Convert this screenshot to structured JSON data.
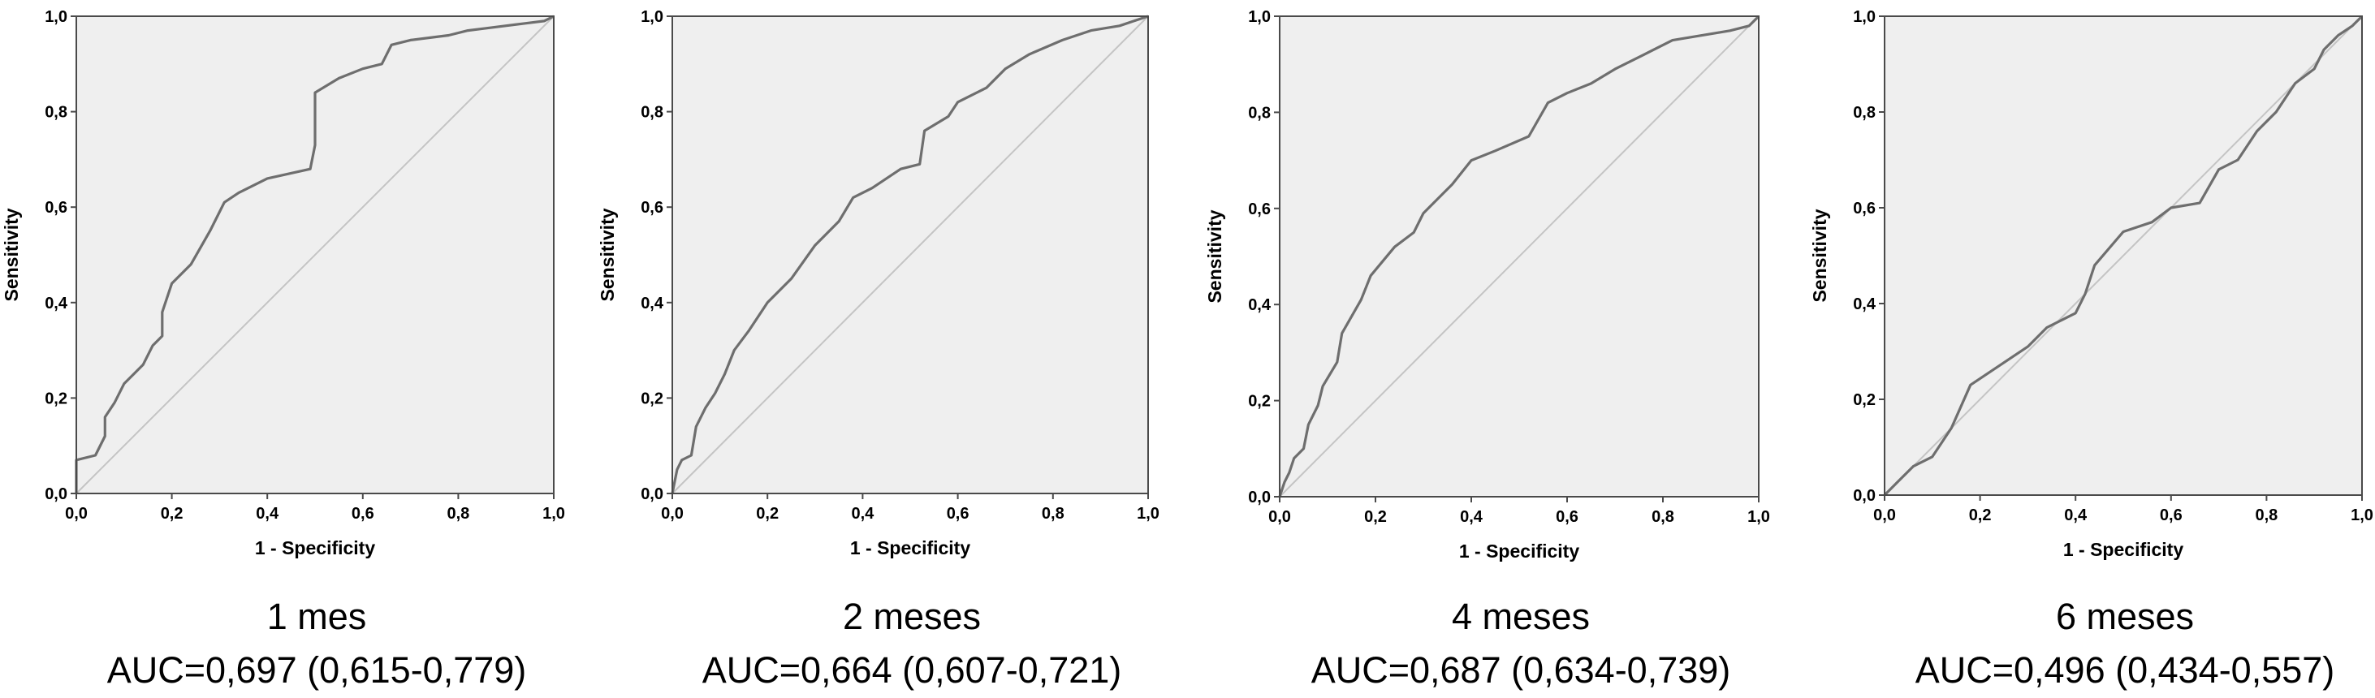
{
  "chart_data": [
    {
      "type": "line",
      "xlabel": "1 - Specificity",
      "ylabel": "Sensitivity",
      "xlim": [
        0,
        1
      ],
      "ylim": [
        0,
        1
      ],
      "xticks": [
        "0,0",
        "0,2",
        "0,4",
        "0,6",
        "0,8",
        "1,0"
      ],
      "yticks": [
        "0,0",
        "0,2",
        "0,4",
        "0,6",
        "0,8",
        "1,0"
      ],
      "caption": "1 mes",
      "auc": "AUC=0,697 (0,615-0,779)",
      "plot_background": "#efefef",
      "curve_color": "#6e6e6e",
      "reference_color": "#c4c4c4",
      "roc_points": [
        [
          0,
          0
        ],
        [
          0,
          0.07
        ],
        [
          0.04,
          0.08
        ],
        [
          0.06,
          0.12
        ],
        [
          0.06,
          0.16
        ],
        [
          0.08,
          0.19
        ],
        [
          0.1,
          0.23
        ],
        [
          0.12,
          0.25
        ],
        [
          0.14,
          0.27
        ],
        [
          0.16,
          0.31
        ],
        [
          0.18,
          0.33
        ],
        [
          0.18,
          0.38
        ],
        [
          0.2,
          0.44
        ],
        [
          0.24,
          0.48
        ],
        [
          0.28,
          0.55
        ],
        [
          0.31,
          0.61
        ],
        [
          0.34,
          0.63
        ],
        [
          0.4,
          0.66
        ],
        [
          0.49,
          0.68
        ],
        [
          0.5,
          0.73
        ],
        [
          0.5,
          0.84
        ],
        [
          0.55,
          0.87
        ],
        [
          0.6,
          0.89
        ],
        [
          0.64,
          0.9
        ],
        [
          0.66,
          0.94
        ],
        [
          0.7,
          0.95
        ],
        [
          0.78,
          0.96
        ],
        [
          0.82,
          0.97
        ],
        [
          0.86,
          0.975
        ],
        [
          0.94,
          0.985
        ],
        [
          0.98,
          0.99
        ],
        [
          1,
          1
        ]
      ]
    },
    {
      "type": "line",
      "xlabel": "1 - Specificity",
      "ylabel": "Sensitivity",
      "xlim": [
        0,
        1
      ],
      "ylim": [
        0,
        1
      ],
      "xticks": [
        "0,0",
        "0,2",
        "0,4",
        "0,6",
        "0,8",
        "1,0"
      ],
      "yticks": [
        "0,0",
        "0,2",
        "0,4",
        "0,6",
        "0,8",
        "1,0"
      ],
      "caption": "2 meses",
      "auc": "AUC=0,664 (0,607-0,721)",
      "plot_background": "#efefef",
      "curve_color": "#6e6e6e",
      "reference_color": "#c4c4c4",
      "roc_points": [
        [
          0,
          0
        ],
        [
          0.01,
          0.05
        ],
        [
          0.02,
          0.07
        ],
        [
          0.04,
          0.08
        ],
        [
          0.05,
          0.14
        ],
        [
          0.07,
          0.18
        ],
        [
          0.09,
          0.21
        ],
        [
          0.11,
          0.25
        ],
        [
          0.13,
          0.3
        ],
        [
          0.16,
          0.34
        ],
        [
          0.2,
          0.4
        ],
        [
          0.25,
          0.45
        ],
        [
          0.3,
          0.52
        ],
        [
          0.35,
          0.57
        ],
        [
          0.38,
          0.62
        ],
        [
          0.42,
          0.64
        ],
        [
          0.45,
          0.66
        ],
        [
          0.48,
          0.68
        ],
        [
          0.52,
          0.69
        ],
        [
          0.53,
          0.76
        ],
        [
          0.58,
          0.79
        ],
        [
          0.6,
          0.82
        ],
        [
          0.66,
          0.85
        ],
        [
          0.7,
          0.89
        ],
        [
          0.75,
          0.92
        ],
        [
          0.82,
          0.95
        ],
        [
          0.88,
          0.97
        ],
        [
          0.94,
          0.98
        ],
        [
          0.97,
          0.99
        ],
        [
          1,
          1
        ]
      ]
    },
    {
      "type": "line",
      "xlabel": "1 - Specificity",
      "ylabel": "Sensitivity",
      "xlim": [
        0,
        1
      ],
      "ylim": [
        0,
        1
      ],
      "xticks": [
        "0,0",
        "0,2",
        "0,4",
        "0,6",
        "0,8",
        "1,0"
      ],
      "yticks": [
        "0,0",
        "0,2",
        "0,4",
        "0,6",
        "0,8",
        "1,0"
      ],
      "caption": "4 meses",
      "auc": "AUC=0,687 (0,634-0,739)",
      "plot_background": "#efefef",
      "curve_color": "#6e6e6e",
      "reference_color": "#c4c4c4",
      "roc_points": [
        [
          0,
          0
        ],
        [
          0.01,
          0.03
        ],
        [
          0.02,
          0.05
        ],
        [
          0.03,
          0.08
        ],
        [
          0.05,
          0.1
        ],
        [
          0.06,
          0.15
        ],
        [
          0.08,
          0.19
        ],
        [
          0.09,
          0.23
        ],
        [
          0.12,
          0.28
        ],
        [
          0.13,
          0.34
        ],
        [
          0.17,
          0.41
        ],
        [
          0.19,
          0.46
        ],
        [
          0.24,
          0.52
        ],
        [
          0.28,
          0.55
        ],
        [
          0.3,
          0.59
        ],
        [
          0.36,
          0.65
        ],
        [
          0.4,
          0.7
        ],
        [
          0.45,
          0.72
        ],
        [
          0.52,
          0.75
        ],
        [
          0.56,
          0.82
        ],
        [
          0.6,
          0.84
        ],
        [
          0.65,
          0.86
        ],
        [
          0.7,
          0.89
        ],
        [
          0.76,
          0.92
        ],
        [
          0.82,
          0.95
        ],
        [
          0.88,
          0.96
        ],
        [
          0.94,
          0.97
        ],
        [
          0.98,
          0.98
        ],
        [
          1,
          1
        ]
      ]
    },
    {
      "type": "line",
      "xlabel": "1 - Specificity",
      "ylabel": "Sensitivity",
      "xlim": [
        0,
        1
      ],
      "ylim": [
        0,
        1
      ],
      "xticks": [
        "0,0",
        "0,2",
        "0,4",
        "0,6",
        "0,8",
        "1,0"
      ],
      "yticks": [
        "0,0",
        "0,2",
        "0,4",
        "0,6",
        "0,8",
        "1,0"
      ],
      "caption": "6 meses",
      "auc": "AUC=0,496 (0,434-0,557)",
      "plot_background": "#efefef",
      "curve_color": "#6e6e6e",
      "reference_color": "#c4c4c4",
      "roc_points": [
        [
          0,
          0
        ],
        [
          0.03,
          0.03
        ],
        [
          0.06,
          0.06
        ],
        [
          0.1,
          0.08
        ],
        [
          0.14,
          0.14
        ],
        [
          0.18,
          0.23
        ],
        [
          0.24,
          0.27
        ],
        [
          0.3,
          0.31
        ],
        [
          0.34,
          0.35
        ],
        [
          0.4,
          0.38
        ],
        [
          0.42,
          0.42
        ],
        [
          0.44,
          0.48
        ],
        [
          0.5,
          0.55
        ],
        [
          0.56,
          0.57
        ],
        [
          0.6,
          0.6
        ],
        [
          0.66,
          0.61
        ],
        [
          0.7,
          0.68
        ],
        [
          0.74,
          0.7
        ],
        [
          0.78,
          0.76
        ],
        [
          0.82,
          0.8
        ],
        [
          0.86,
          0.86
        ],
        [
          0.9,
          0.89
        ],
        [
          0.92,
          0.93
        ],
        [
          0.95,
          0.96
        ],
        [
          0.98,
          0.98
        ],
        [
          1,
          1
        ]
      ]
    }
  ]
}
